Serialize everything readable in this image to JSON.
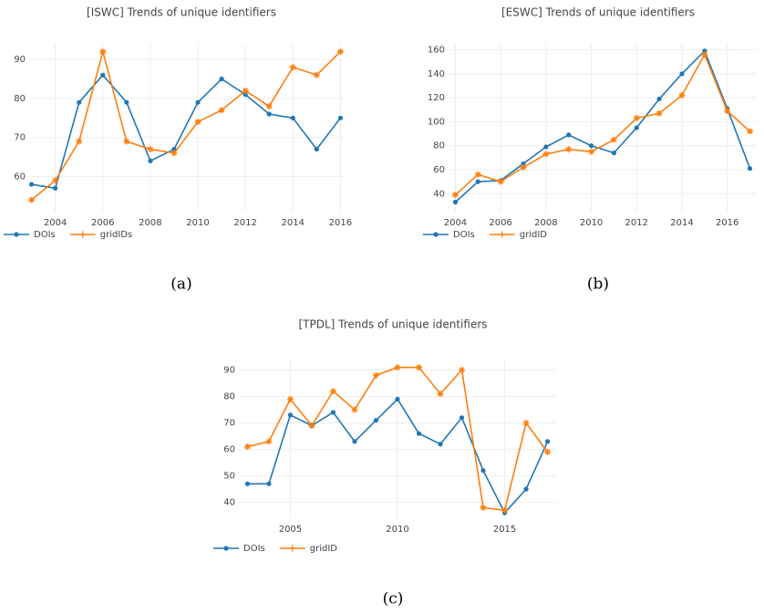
{
  "chart_data": [
    {
      "type": "line",
      "title": "[ISWC] Trends of unique identifiers",
      "caption": "(a)",
      "x": [
        2003,
        2004,
        2005,
        2006,
        2007,
        2008,
        2009,
        2010,
        2011,
        2012,
        2013,
        2014,
        2015,
        2016
      ],
      "series": [
        {
          "name": "DOIs",
          "color": "#1f77b4",
          "marker": "circle",
          "values": [
            58,
            57,
            79,
            86,
            79,
            64,
            67,
            79,
            85,
            81,
            76,
            75,
            67,
            75
          ]
        },
        {
          "name": "gridIDs",
          "color": "#ff7f0e",
          "marker": "cross",
          "values": [
            54,
            59,
            69,
            92,
            69,
            67,
            66,
            74,
            77,
            82,
            78,
            88,
            86,
            92
          ]
        }
      ],
      "xlim": [
        2002.9,
        2016.1
      ],
      "xticks": [
        2004,
        2006,
        2008,
        2010,
        2012,
        2014,
        2016
      ],
      "ylim": [
        51,
        94
      ],
      "yticks": [
        60,
        70,
        80,
        90
      ],
      "grid": true,
      "legend": "bottom-left"
    },
    {
      "type": "line",
      "title": "[ESWC] Trends of unique identifiers",
      "caption": "(b)",
      "x": [
        2004,
        2005,
        2006,
        2007,
        2008,
        2009,
        2010,
        2011,
        2012,
        2013,
        2014,
        2015,
        2016,
        2017
      ],
      "series": [
        {
          "name": "DOIs",
          "color": "#1f77b4",
          "marker": "circle",
          "values": [
            33,
            50,
            51,
            65,
            79,
            89,
            80,
            74,
            95,
            119,
            140,
            159,
            111,
            61
          ]
        },
        {
          "name": "gridID",
          "color": "#ff7f0e",
          "marker": "cross",
          "values": [
            39,
            56,
            50,
            62,
            73,
            77,
            75,
            85,
            103,
            107,
            122,
            156,
            109,
            92
          ]
        }
      ],
      "xlim": [
        2003.7,
        2017.3
      ],
      "xticks": [
        2004,
        2006,
        2008,
        2010,
        2012,
        2014,
        2016
      ],
      "ylim": [
        25,
        165
      ],
      "yticks": [
        40,
        60,
        80,
        100,
        120,
        140,
        160
      ],
      "grid": true,
      "legend": "bottom-left"
    },
    {
      "type": "line",
      "title": "[TPDL] Trends of unique identifiers",
      "caption": "(c)",
      "x": [
        2003,
        2004,
        2005,
        2006,
        2007,
        2008,
        2009,
        2010,
        2011,
        2012,
        2013,
        2014,
        2015,
        2016,
        2017
      ],
      "series": [
        {
          "name": "DOIs",
          "color": "#1f77b4",
          "marker": "circle",
          "values": [
            47,
            47,
            73,
            69,
            74,
            63,
            71,
            79,
            66,
            62,
            72,
            52,
            36,
            45,
            63
          ]
        },
        {
          "name": "gridID",
          "color": "#ff7f0e",
          "marker": "cross",
          "values": [
            61,
            63,
            79,
            69,
            82,
            75,
            88,
            91,
            91,
            81,
            90,
            38,
            37,
            70,
            59
          ]
        }
      ],
      "xlim": [
        2002.6,
        2017.4
      ],
      "xticks": [
        2005,
        2010,
        2015
      ],
      "ylim": [
        34,
        94
      ],
      "yticks": [
        40,
        50,
        60,
        70,
        80,
        90
      ],
      "grid": true,
      "legend": "bottom-left"
    }
  ]
}
